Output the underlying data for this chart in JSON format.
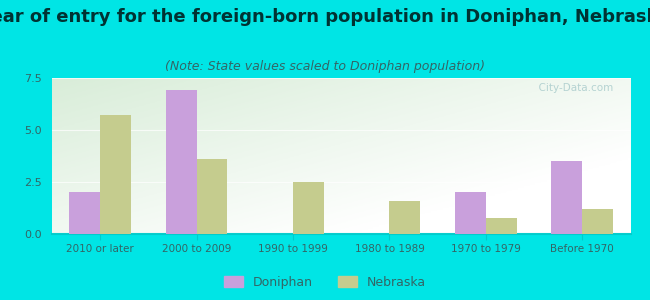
{
  "title": "Year of entry for the foreign-born population in Doniphan, Nebraska",
  "subtitle": "(Note: State values scaled to Doniphan population)",
  "categories": [
    "2010 or later",
    "2000 to 2009",
    "1990 to 1999",
    "1980 to 1989",
    "1970 to 1979",
    "Before 1970"
  ],
  "doniphan_values": [
    2.0,
    6.9,
    0.0,
    0.0,
    2.0,
    3.5
  ],
  "nebraska_values": [
    5.7,
    3.6,
    2.5,
    1.6,
    0.75,
    1.2
  ],
  "doniphan_color": "#c9a0dc",
  "nebraska_color": "#c5cc8e",
  "ylim": [
    0,
    7.5
  ],
  "yticks": [
    0,
    2.5,
    5,
    7.5
  ],
  "background_outer": "#00e5e5",
  "title_fontsize": 13,
  "subtitle_fontsize": 9,
  "legend_labels": [
    "Doniphan",
    "Nebraska"
  ],
  "watermark": "  City-Data.com"
}
